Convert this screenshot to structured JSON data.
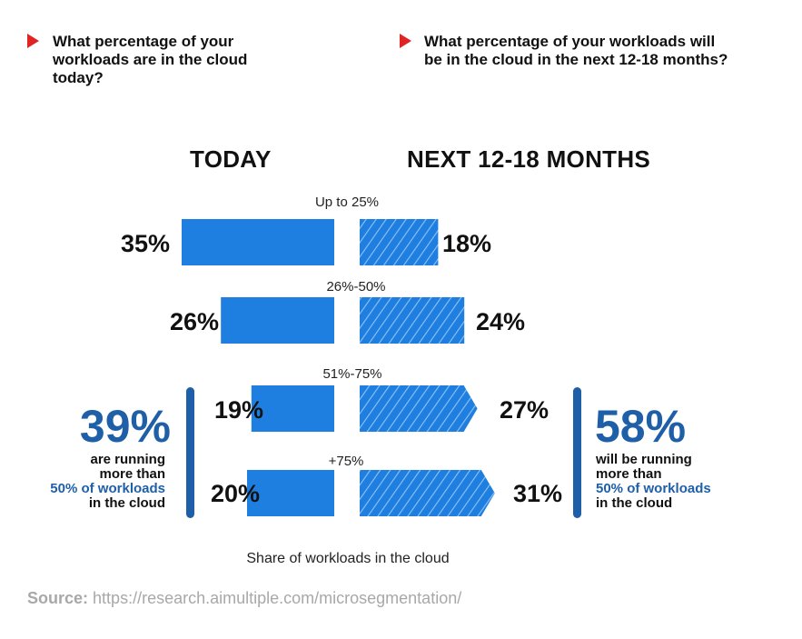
{
  "questions": {
    "left": "What percentage of your workloads are in the cloud today?",
    "right": "What percentage of your workloads will be in the cloud in the next 12-18 months?"
  },
  "chart_data": {
    "type": "bar",
    "orientation": "horizontal-diverging",
    "title": "",
    "xlabel": "Share of workloads in the cloud",
    "ylabel": "",
    "categories": [
      "Up to 25%",
      "26%-50%",
      "51%-75%",
      "+75%"
    ],
    "series": [
      {
        "name": "TODAY",
        "values": [
          35,
          26,
          19,
          20
        ],
        "unit": "%",
        "color": "#1f7fe0",
        "fill": "solid"
      },
      {
        "name": "NEXT 12-18 MONTHS",
        "values": [
          18,
          24,
          27,
          31
        ],
        "unit": "%",
        "color": "#1f7fe0",
        "fill": "hatched"
      }
    ],
    "value_labels": {
      "TODAY": [
        "35%",
        "26%",
        "19%",
        "20%"
      ],
      "NEXT 12-18 MONTHS": [
        "18%",
        "24%",
        "27%",
        "31%"
      ]
    },
    "summary": {
      "left": {
        "value": "39%",
        "text_before": "are running more than",
        "highlight": "50% of workloads",
        "text_after": "in the cloud"
      },
      "right": {
        "value": "58%",
        "text_before": "will be running more than",
        "highlight": "50% of workloads",
        "text_after": "in the cloud"
      }
    },
    "colors": {
      "bar": "#1f7fe0",
      "accent": "#1f5fa8",
      "marker": "#e02424"
    }
  },
  "source": {
    "label": "Source:",
    "url": "https://research.aimultiple.com/microsegmentation/"
  }
}
